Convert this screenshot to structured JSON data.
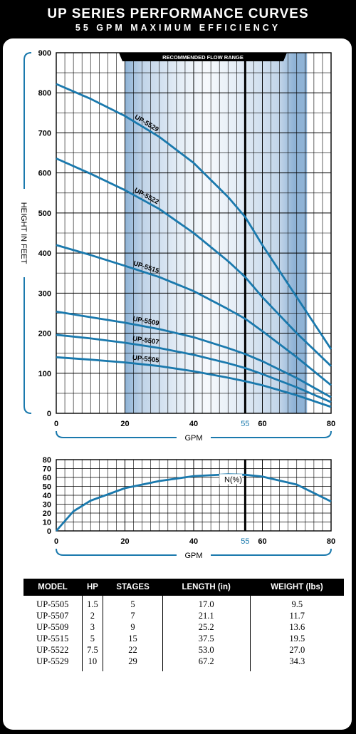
{
  "header": {
    "title": "UP SERIES PERFORMANCE CURVES",
    "subtitle": "55 GPM MAXIMUM EFFICIENCY"
  },
  "colors": {
    "curve": "#1a79ad",
    "band_dark": "#8fb3d6",
    "band_light": "#e4edf6",
    "grid": "#000000"
  },
  "chart_data": [
    {
      "type": "line",
      "ylabel": "HEIGHT IN FEET",
      "xlabel": "GPM",
      "xlim": [
        0,
        80
      ],
      "ylim": [
        0,
        900
      ],
      "x_ticks": [
        0,
        20,
        40,
        60,
        80
      ],
      "y_ticks": [
        0,
        100,
        200,
        300,
        400,
        500,
        600,
        700,
        800,
        900
      ],
      "highlight_x": 55,
      "recommended_range_label": "RECOMMENDED FLOW RANGE",
      "recommended_range": [
        20,
        73
      ],
      "grid": true,
      "series": [
        {
          "name": "UP-5529",
          "x": [
            0,
            10,
            20,
            30,
            40,
            50,
            55,
            60,
            70,
            80
          ],
          "y": [
            822,
            785,
            742,
            690,
            625,
            540,
            490,
            420,
            290,
            160
          ]
        },
        {
          "name": "UP-5522",
          "x": [
            0,
            10,
            20,
            30,
            40,
            50,
            55,
            60,
            70,
            80
          ],
          "y": [
            636,
            598,
            557,
            510,
            450,
            380,
            340,
            290,
            200,
            118
          ]
        },
        {
          "name": "UP-5515",
          "x": [
            0,
            10,
            20,
            30,
            40,
            50,
            55,
            60,
            70,
            80
          ],
          "y": [
            420,
            395,
            368,
            340,
            305,
            260,
            236,
            205,
            140,
            70
          ]
        },
        {
          "name": "UP-5509",
          "x": [
            0,
            10,
            20,
            30,
            40,
            50,
            55,
            60,
            70,
            80
          ],
          "y": [
            254,
            240,
            226,
            210,
            190,
            163,
            148,
            130,
            88,
            40
          ]
        },
        {
          "name": "UP-5507",
          "x": [
            0,
            10,
            20,
            30,
            40,
            50,
            55,
            60,
            70,
            80
          ],
          "y": [
            196,
            187,
            176,
            163,
            146,
            125,
            113,
            98,
            65,
            28
          ]
        },
        {
          "name": "UP-5505",
          "x": [
            0,
            10,
            20,
            30,
            40,
            50,
            55,
            60,
            70,
            80
          ],
          "y": [
            140,
            134,
            127,
            118,
            105,
            89,
            80,
            70,
            45,
            16
          ]
        }
      ]
    },
    {
      "type": "line",
      "xlabel": "GPM",
      "xlim": [
        0,
        80
      ],
      "ylim": [
        0,
        80
      ],
      "x_ticks": [
        0,
        20,
        40,
        60,
        80
      ],
      "y_ticks": [
        0,
        10,
        20,
        30,
        40,
        50,
        60,
        70,
        80
      ],
      "highlight_x": 55,
      "grid": true,
      "series": [
        {
          "name": "N(%)",
          "x": [
            0,
            5,
            10,
            20,
            30,
            40,
            50,
            55,
            60,
            70,
            80
          ],
          "y": [
            0,
            22,
            34,
            48,
            56,
            61.5,
            63.5,
            63,
            61,
            52,
            33
          ]
        }
      ]
    }
  ],
  "table": {
    "headers": [
      "MODEL",
      "HP",
      "STAGES",
      "LENGTH (in)",
      "WEIGHT (lbs)"
    ],
    "rows": [
      [
        "UP-5505",
        "1.5",
        "5",
        "17.0",
        "9.5"
      ],
      [
        "UP-5507",
        "2",
        "7",
        "21.1",
        "11.7"
      ],
      [
        "UP-5509",
        "3",
        "9",
        "25.2",
        "13.6"
      ],
      [
        "UP-5515",
        "5",
        "15",
        "37.5",
        "19.5"
      ],
      [
        "UP-5522",
        "7.5",
        "22",
        "53.0",
        "27.0"
      ],
      [
        "UP-5529",
        "10",
        "29",
        "67.2",
        "34.3"
      ]
    ]
  }
}
